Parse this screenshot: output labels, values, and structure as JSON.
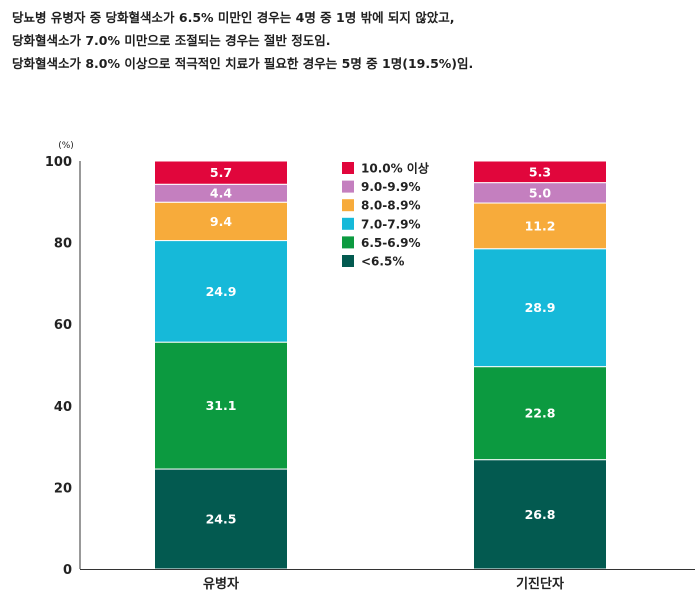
{
  "description": {
    "lines": [
      "당뇨병 유병자 중 당화혈색소가 6.5% 미만인 경우는 4명 중 1명 밖에 되지 않았고,",
      "당화혈색소가 7.0% 미만으로 조절되는 경우는 절반 정도임.",
      "당화혈색소가 8.0% 이상으로 적극적인 치료가 필요한 경우는 5명 중 1명(19.5%)임."
    ]
  },
  "chart_data": {
    "type": "bar",
    "stacked": true,
    "unit_label": "(%)",
    "ylim": [
      0,
      100
    ],
    "yticks": [
      0,
      20,
      40,
      60,
      80,
      100
    ],
    "categories": [
      "유병자",
      "기진단자"
    ],
    "series": [
      {
        "name": "<6.5%",
        "color": "#035a50",
        "values": [
          24.5,
          26.8
        ]
      },
      {
        "name": "6.5-6.9%",
        "color": "#0c9a40",
        "values": [
          31.1,
          22.8
        ]
      },
      {
        "name": "7.0-7.9%",
        "color": "#16b9d9",
        "values": [
          24.9,
          28.9
        ]
      },
      {
        "name": "8.0-8.9%",
        "color": "#f7ab3b",
        "values": [
          9.4,
          11.2
        ]
      },
      {
        "name": "9.0-9.9%",
        "color": "#c47fbf",
        "values": [
          4.4,
          5.0
        ]
      },
      {
        "name": "10.0% 이상",
        "color": "#e1063c",
        "values": [
          5.7,
          5.3
        ]
      }
    ],
    "data_labels": [
      [
        "24.5",
        "26.8"
      ],
      [
        "31.1",
        "22.8"
      ],
      [
        "24.9",
        "28.9"
      ],
      [
        "9.4",
        "11.2"
      ],
      [
        "4.4",
        "5.0"
      ],
      [
        "5.7",
        "5.3"
      ]
    ],
    "legend": {
      "position": "top-center",
      "order": [
        "10.0% 이상",
        "9.0-9.9%",
        "8.0-8.9%",
        "7.0-7.9%",
        "6.5-6.9%",
        "<6.5%"
      ]
    }
  }
}
